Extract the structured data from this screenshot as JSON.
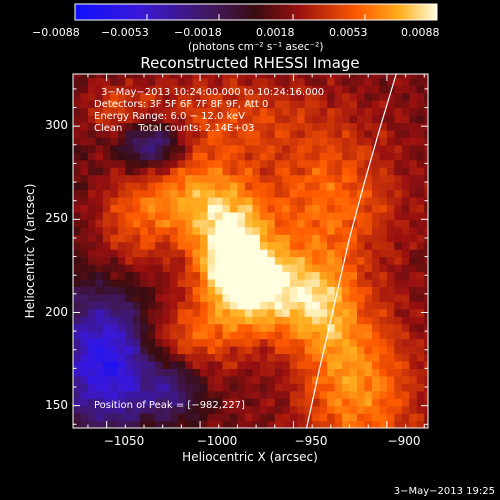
{
  "chart_data": {
    "type": "heatmap",
    "title": "Reconstructed RHESSI Image",
    "xlabel": "Heliocentric X (arcsec)",
    "ylabel": "Heliocentric Y (arcsec)",
    "xlim": [
      -1068,
      -878
    ],
    "ylim": [
      138,
      328
    ],
    "x_ticks": [
      -1050,
      -1000,
      -950,
      -900
    ],
    "x_tick_labels": [
      "−1050",
      "−1000",
      "−950",
      "−900"
    ],
    "y_ticks": [
      150,
      200,
      250,
      300
    ],
    "y_tick_labels": [
      "150",
      "200",
      "250",
      "300"
    ],
    "colorbar": {
      "range": [
        -0.0088,
        0.0088
      ],
      "ticks": [
        -0.0088,
        -0.0053,
        -0.0018,
        0.0018,
        0.0053,
        0.0088
      ],
      "tick_labels": [
        "−0.0088",
        "−0.0053",
        "−0.0018",
        "0.0018",
        "0.0053",
        "0.0088"
      ],
      "unit_label": "(photons cm⁻² s⁻¹ asec⁻²)"
    },
    "annotations": [
      "3−May−2013 10:24:00.000 to 10:24:16.000",
      "Detectors: 3F 5F 6F 7F 8F 9F, Att 0",
      "Energy Range: 6.0 − 12.0 keV",
      "Clean     Total counts: 2.14E+03"
    ],
    "peak_label": "Position of Peak = [−982,227]",
    "peak": [
      -982,
      227
    ],
    "limb_curve": [
      [
        -943,
        138
      ],
      [
        -936,
        170
      ],
      [
        -928,
        205
      ],
      [
        -920,
        240
      ],
      [
        -912,
        270
      ],
      [
        -904,
        298
      ],
      [
        -895,
        328
      ]
    ],
    "emission_sources": [
      {
        "x": -982,
        "y": 226,
        "sx": 14,
        "sy": 22,
        "amp": 1.0
      },
      {
        "x": -960,
        "y": 212,
        "sx": 13,
        "sy": 16,
        "amp": 0.55
      },
      {
        "x": -1005,
        "y": 262,
        "sx": 22,
        "sy": 18,
        "amp": 0.55
      },
      {
        "x": -930,
        "y": 260,
        "sx": 25,
        "sy": 25,
        "amp": 0.45
      },
      {
        "x": -935,
        "y": 205,
        "sx": 14,
        "sy": 20,
        "amp": 0.55
      },
      {
        "x": -915,
        "y": 160,
        "sx": 22,
        "sy": 30,
        "amp": 0.55
      },
      {
        "x": -1010,
        "y": 185,
        "sx": 20,
        "sy": 15,
        "amp": 0.38
      },
      {
        "x": -985,
        "y": 305,
        "sx": 40,
        "sy": 16,
        "amp": 0.3
      },
      {
        "x": -1040,
        "y": 245,
        "sx": 14,
        "sy": 20,
        "amp": 0.3
      },
      {
        "x": -1045,
        "y": 310,
        "sx": 12,
        "sy": 10,
        "amp": 0.28
      }
    ],
    "negative_sources": [
      {
        "x": -1050,
        "y": 175,
        "sx": 18,
        "sy": 25,
        "amp": 0.9
      },
      {
        "x": -1025,
        "y": 290,
        "sx": 12,
        "sy": 10,
        "amp": 0.7
      },
      {
        "x": -1015,
        "y": 160,
        "sx": 12,
        "sy": 12,
        "amp": 0.5
      }
    ]
  },
  "footer": {
    "timestamp": "3−May−2013 19:25"
  }
}
